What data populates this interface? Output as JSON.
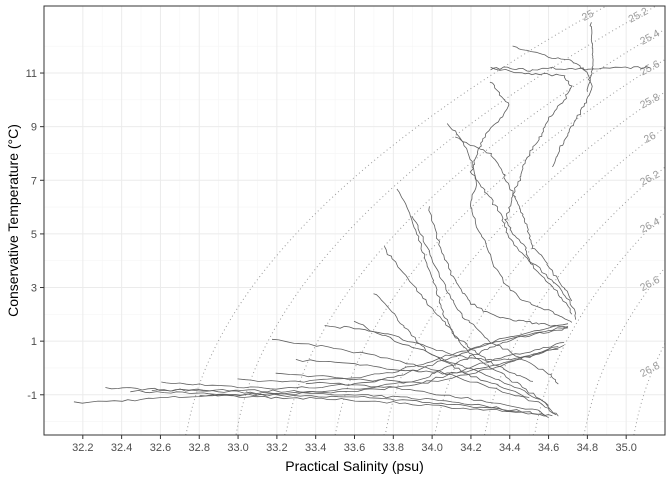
{
  "chart_data": {
    "type": "scatter",
    "xlabel": "Practical Salinity (psu)",
    "ylabel": "Conservative Temperature (°C)",
    "xlim": [
      32.0,
      35.2
    ],
    "ylim": [
      -2.5,
      13.5
    ],
    "x_ticks": [
      "32.2",
      "32.4",
      "32.6",
      "32.8",
      "33.0",
      "33.2",
      "33.4",
      "33.6",
      "33.8",
      "34.0",
      "34.2",
      "34.4",
      "34.6",
      "34.8",
      "35.0"
    ],
    "y_ticks": [
      "-1",
      "1",
      "3",
      "5",
      "7",
      "9",
      "11"
    ],
    "grid": true,
    "isopycnals": [
      "25",
      "25.2",
      "25.4",
      "25.6",
      "25.8",
      "26",
      "26.2",
      "26.4",
      "26.6",
      "26.8",
      "27",
      "27.2",
      "27.4",
      "27.6",
      "27.8",
      "28"
    ],
    "colors": {
      "profile": "#5f5f5f",
      "isopycnal": "#9a9a9a",
      "grid_major": "#ebebeb",
      "grid_minor": "#f5f5f5",
      "panel_border": "#333333"
    },
    "series": [
      {
        "values": [
          [
            32.16,
            -1.3
          ],
          [
            32.4,
            -1.22
          ],
          [
            32.6,
            -1.12
          ],
          [
            32.8,
            -1.05
          ],
          [
            33.0,
            -1.0
          ],
          [
            33.2,
            -0.95
          ],
          [
            33.4,
            -0.88
          ],
          [
            33.6,
            -0.78
          ],
          [
            33.8,
            -0.62
          ],
          [
            33.95,
            -0.4
          ],
          [
            34.05,
            -0.1
          ],
          [
            34.15,
            0.25
          ],
          [
            34.25,
            0.6
          ],
          [
            34.35,
            0.9
          ],
          [
            34.45,
            1.15
          ],
          [
            34.6,
            1.35
          ],
          [
            34.7,
            1.5
          ]
        ]
      },
      {
        "values": [
          [
            32.32,
            -0.75
          ],
          [
            32.5,
            -0.78
          ],
          [
            32.7,
            -0.82
          ],
          [
            32.9,
            -0.88
          ],
          [
            33.1,
            -0.92
          ],
          [
            33.3,
            -0.95
          ],
          [
            33.5,
            -1.0
          ],
          [
            33.7,
            -1.05
          ],
          [
            33.9,
            -1.12
          ],
          [
            34.1,
            -1.25
          ],
          [
            34.3,
            -1.45
          ],
          [
            34.5,
            -1.65
          ],
          [
            34.62,
            -1.78
          ]
        ]
      },
      {
        "values": [
          [
            32.55,
            -0.85
          ],
          [
            32.75,
            -0.8
          ],
          [
            32.95,
            -0.82
          ],
          [
            33.15,
            -0.86
          ],
          [
            33.35,
            -0.88
          ],
          [
            33.55,
            -0.9
          ],
          [
            33.75,
            -0.78
          ],
          [
            33.95,
            -0.55
          ],
          [
            34.1,
            -0.2
          ],
          [
            34.25,
            0.15
          ],
          [
            34.4,
            0.45
          ],
          [
            34.55,
            0.7
          ],
          [
            34.68,
            0.95
          ]
        ]
      },
      {
        "values": [
          [
            32.6,
            -0.55
          ],
          [
            32.8,
            -0.62
          ],
          [
            33.0,
            -0.7
          ],
          [
            33.2,
            -0.75
          ],
          [
            33.4,
            -0.72
          ],
          [
            33.6,
            -0.6
          ],
          [
            33.8,
            -0.35
          ],
          [
            33.95,
            0.0
          ],
          [
            34.1,
            0.4
          ],
          [
            34.25,
            0.8
          ],
          [
            34.4,
            1.1
          ],
          [
            34.55,
            1.3
          ],
          [
            34.7,
            1.55
          ]
        ]
      },
      {
        "values": [
          [
            32.8,
            -1.0
          ],
          [
            33.0,
            -1.05
          ],
          [
            33.2,
            -1.1
          ],
          [
            33.4,
            -1.15
          ],
          [
            33.6,
            -1.2
          ],
          [
            33.8,
            -1.28
          ],
          [
            34.0,
            -1.4
          ],
          [
            34.2,
            -1.52
          ],
          [
            34.4,
            -1.62
          ],
          [
            34.58,
            -1.8
          ]
        ]
      },
      {
        "values": [
          [
            33.0,
            -0.45
          ],
          [
            33.2,
            -0.5
          ],
          [
            33.4,
            -0.48
          ],
          [
            33.6,
            -0.35
          ],
          [
            33.8,
            -0.15
          ],
          [
            33.95,
            0.15
          ],
          [
            34.1,
            0.5
          ],
          [
            34.25,
            0.85
          ],
          [
            34.4,
            1.15
          ],
          [
            34.55,
            1.4
          ],
          [
            34.7,
            1.65
          ]
        ]
      },
      {
        "values": [
          [
            33.2,
            -0.2
          ],
          [
            33.4,
            -0.3
          ],
          [
            33.6,
            -0.4
          ],
          [
            33.8,
            -0.5
          ],
          [
            33.95,
            -0.55
          ],
          [
            34.1,
            -0.4
          ],
          [
            34.25,
            -0.1
          ],
          [
            34.4,
            0.2
          ],
          [
            34.55,
            0.55
          ],
          [
            34.68,
            0.85
          ]
        ]
      },
      {
        "values": [
          [
            33.17,
            1.05
          ],
          [
            33.4,
            0.85
          ],
          [
            33.6,
            0.6
          ],
          [
            33.8,
            0.3
          ],
          [
            34.0,
            -0.05
          ],
          [
            34.2,
            -0.5
          ],
          [
            34.4,
            -0.95
          ],
          [
            34.55,
            -1.3
          ],
          [
            34.64,
            -1.75
          ]
        ]
      },
      {
        "values": [
          [
            33.3,
            0.3
          ],
          [
            33.5,
            0.2
          ],
          [
            33.7,
            0.05
          ],
          [
            33.9,
            -0.1
          ],
          [
            34.05,
            -0.2
          ],
          [
            34.2,
            -0.1
          ],
          [
            34.35,
            0.15
          ],
          [
            34.5,
            0.45
          ],
          [
            34.65,
            0.8
          ]
        ]
      },
      {
        "values": [
          [
            33.45,
            1.55
          ],
          [
            33.6,
            1.5
          ],
          [
            33.75,
            1.3
          ],
          [
            33.9,
            0.95
          ],
          [
            34.05,
            0.6
          ],
          [
            34.2,
            0.35
          ],
          [
            34.35,
            0.3
          ],
          [
            34.5,
            0.45
          ],
          [
            34.65,
            0.7
          ]
        ]
      },
      {
        "values": [
          [
            33.82,
            6.7
          ],
          [
            33.88,
            5.8
          ],
          [
            33.92,
            5.0
          ],
          [
            33.96,
            4.2
          ],
          [
            34.0,
            3.4
          ],
          [
            34.03,
            2.7
          ],
          [
            34.06,
            2.0
          ],
          [
            34.1,
            1.4
          ],
          [
            34.15,
            0.9
          ],
          [
            34.22,
            0.4
          ],
          [
            34.3,
            0.0
          ],
          [
            34.4,
            -0.4
          ],
          [
            34.5,
            -0.9
          ],
          [
            34.6,
            -1.4
          ]
        ]
      },
      {
        "values": [
          [
            33.9,
            5.7
          ],
          [
            33.95,
            4.9
          ],
          [
            34.0,
            4.1
          ],
          [
            34.05,
            3.3
          ],
          [
            34.1,
            2.6
          ],
          [
            34.15,
            2.0
          ],
          [
            34.22,
            1.5
          ],
          [
            34.3,
            1.0
          ],
          [
            34.4,
            0.6
          ],
          [
            34.5,
            0.2
          ],
          [
            34.6,
            -0.2
          ],
          [
            34.65,
            -0.6
          ]
        ]
      },
      {
        "values": [
          [
            33.98,
            6.0
          ],
          [
            34.02,
            5.0
          ],
          [
            34.06,
            4.2
          ],
          [
            34.1,
            3.5
          ],
          [
            34.15,
            2.9
          ],
          [
            34.2,
            2.4
          ],
          [
            34.3,
            2.0
          ],
          [
            34.4,
            1.8
          ],
          [
            34.5,
            1.7
          ],
          [
            34.6,
            1.6
          ],
          [
            34.7,
            1.5
          ]
        ]
      },
      {
        "values": [
          [
            33.75,
            4.5
          ],
          [
            33.82,
            3.8
          ],
          [
            33.9,
            3.1
          ],
          [
            33.98,
            2.4
          ],
          [
            34.05,
            1.8
          ],
          [
            34.12,
            1.2
          ],
          [
            34.2,
            0.7
          ],
          [
            34.3,
            0.2
          ],
          [
            34.42,
            -0.2
          ],
          [
            34.52,
            -0.5
          ]
        ]
      },
      {
        "values": [
          [
            33.7,
            2.8
          ],
          [
            33.78,
            2.2
          ],
          [
            33.85,
            1.6
          ],
          [
            33.92,
            1.0
          ],
          [
            34.0,
            0.5
          ],
          [
            34.1,
            0.1
          ],
          [
            34.2,
            -0.3
          ],
          [
            34.35,
            -0.7
          ],
          [
            34.5,
            -1.1
          ]
        ]
      },
      {
        "values": [
          [
            34.08,
            9.1
          ],
          [
            34.15,
            8.5
          ],
          [
            34.2,
            7.8
          ],
          [
            34.23,
            7.0
          ],
          [
            34.2,
            6.2
          ],
          [
            34.22,
            5.4
          ],
          [
            34.28,
            4.6
          ],
          [
            34.32,
            3.8
          ],
          [
            34.38,
            3.1
          ],
          [
            34.45,
            2.6
          ],
          [
            34.55,
            2.3
          ],
          [
            34.65,
            2.0
          ],
          [
            34.72,
            1.7
          ]
        ]
      },
      {
        "values": [
          [
            34.3,
            11.15
          ],
          [
            34.4,
            11.2
          ],
          [
            34.5,
            11.1
          ],
          [
            34.58,
            11.2
          ],
          [
            34.7,
            11.15
          ],
          [
            34.83,
            11.15
          ],
          [
            35.0,
            11.2
          ],
          [
            35.12,
            11.2
          ]
        ]
      },
      {
        "values": [
          [
            34.3,
            11.2
          ],
          [
            34.45,
            11.0
          ],
          [
            34.55,
            10.95
          ],
          [
            34.68,
            10.9
          ],
          [
            34.72,
            10.5
          ],
          [
            34.68,
            10.0
          ],
          [
            34.62,
            9.5
          ],
          [
            34.58,
            9.0
          ],
          [
            34.55,
            8.5
          ],
          [
            34.5,
            8.0
          ],
          [
            34.47,
            7.5
          ],
          [
            34.45,
            7.0
          ],
          [
            34.42,
            6.5
          ],
          [
            34.4,
            6.0
          ],
          [
            34.38,
            5.5
          ],
          [
            34.42,
            5.0
          ],
          [
            34.48,
            4.5
          ],
          [
            34.5,
            4.0
          ],
          [
            34.55,
            3.5
          ],
          [
            34.62,
            3.0
          ],
          [
            34.68,
            2.5
          ],
          [
            34.72,
            2.0
          ]
        ]
      },
      {
        "values": [
          [
            34.42,
            12.0
          ],
          [
            34.5,
            11.8
          ],
          [
            34.6,
            11.6
          ],
          [
            34.7,
            11.5
          ],
          [
            34.75,
            11.3
          ],
          [
            34.8,
            11.0
          ],
          [
            34.82,
            10.5
          ],
          [
            34.8,
            10.0
          ],
          [
            34.76,
            9.5
          ],
          [
            34.72,
            9.0
          ],
          [
            34.68,
            8.5
          ],
          [
            34.65,
            8.0
          ],
          [
            34.62,
            7.5
          ]
        ]
      },
      {
        "values": [
          [
            34.82,
            12.9
          ],
          [
            34.82,
            12.3
          ],
          [
            34.83,
            11.8
          ],
          [
            34.83,
            11.3
          ],
          [
            34.82,
            10.8
          ],
          [
            34.8,
            10.3
          ]
        ]
      },
      {
        "values": [
          [
            34.3,
            10.7
          ],
          [
            34.35,
            10.2
          ],
          [
            34.4,
            9.8
          ],
          [
            34.35,
            9.3
          ],
          [
            34.28,
            8.8
          ],
          [
            34.25,
            8.3
          ],
          [
            34.22,
            7.8
          ],
          [
            34.2,
            7.3
          ],
          [
            34.25,
            6.8
          ],
          [
            34.3,
            6.3
          ],
          [
            34.35,
            5.8
          ],
          [
            34.38,
            5.2
          ],
          [
            34.42,
            4.6
          ],
          [
            34.5,
            4.0
          ],
          [
            34.6,
            3.4
          ],
          [
            34.68,
            2.8
          ],
          [
            34.73,
            2.2
          ],
          [
            34.74,
            1.8
          ]
        ]
      },
      {
        "values": [
          [
            34.12,
            8.6
          ],
          [
            34.2,
            8.3
          ],
          [
            34.3,
            8.0
          ],
          [
            34.35,
            7.5
          ],
          [
            34.38,
            7.0
          ],
          [
            34.42,
            6.5
          ],
          [
            34.45,
            6.0
          ],
          [
            34.48,
            5.5
          ],
          [
            34.5,
            5.0
          ],
          [
            34.52,
            4.5
          ],
          [
            34.58,
            4.0
          ],
          [
            34.63,
            3.5
          ],
          [
            34.68,
            3.0
          ],
          [
            34.72,
            2.5
          ]
        ]
      },
      {
        "values": [
          [
            33.6,
            1.7
          ],
          [
            33.72,
            1.3
          ],
          [
            33.85,
            0.9
          ],
          [
            34.0,
            0.5
          ],
          [
            34.15,
            0.1
          ],
          [
            34.3,
            -0.3
          ],
          [
            34.45,
            -0.8
          ],
          [
            34.58,
            -1.3
          ],
          [
            34.65,
            -1.8
          ]
        ]
      },
      {
        "values": [
          [
            33.35,
            -0.55
          ],
          [
            33.55,
            -0.6
          ],
          [
            33.75,
            -0.7
          ],
          [
            33.95,
            -0.9
          ],
          [
            34.15,
            -1.1
          ],
          [
            34.35,
            -1.3
          ],
          [
            34.55,
            -1.6
          ],
          [
            34.6,
            -1.85
          ]
        ]
      },
      {
        "values": [
          [
            32.45,
            -0.85
          ],
          [
            32.65,
            -0.92
          ],
          [
            32.85,
            -0.97
          ],
          [
            33.05,
            -1.0
          ],
          [
            33.25,
            -1.02
          ],
          [
            33.45,
            -1.05
          ],
          [
            33.65,
            -1.1
          ],
          [
            33.85,
            -1.2
          ],
          [
            34.05,
            -1.32
          ],
          [
            34.25,
            -1.48
          ],
          [
            34.45,
            -1.62
          ]
        ]
      }
    ]
  }
}
